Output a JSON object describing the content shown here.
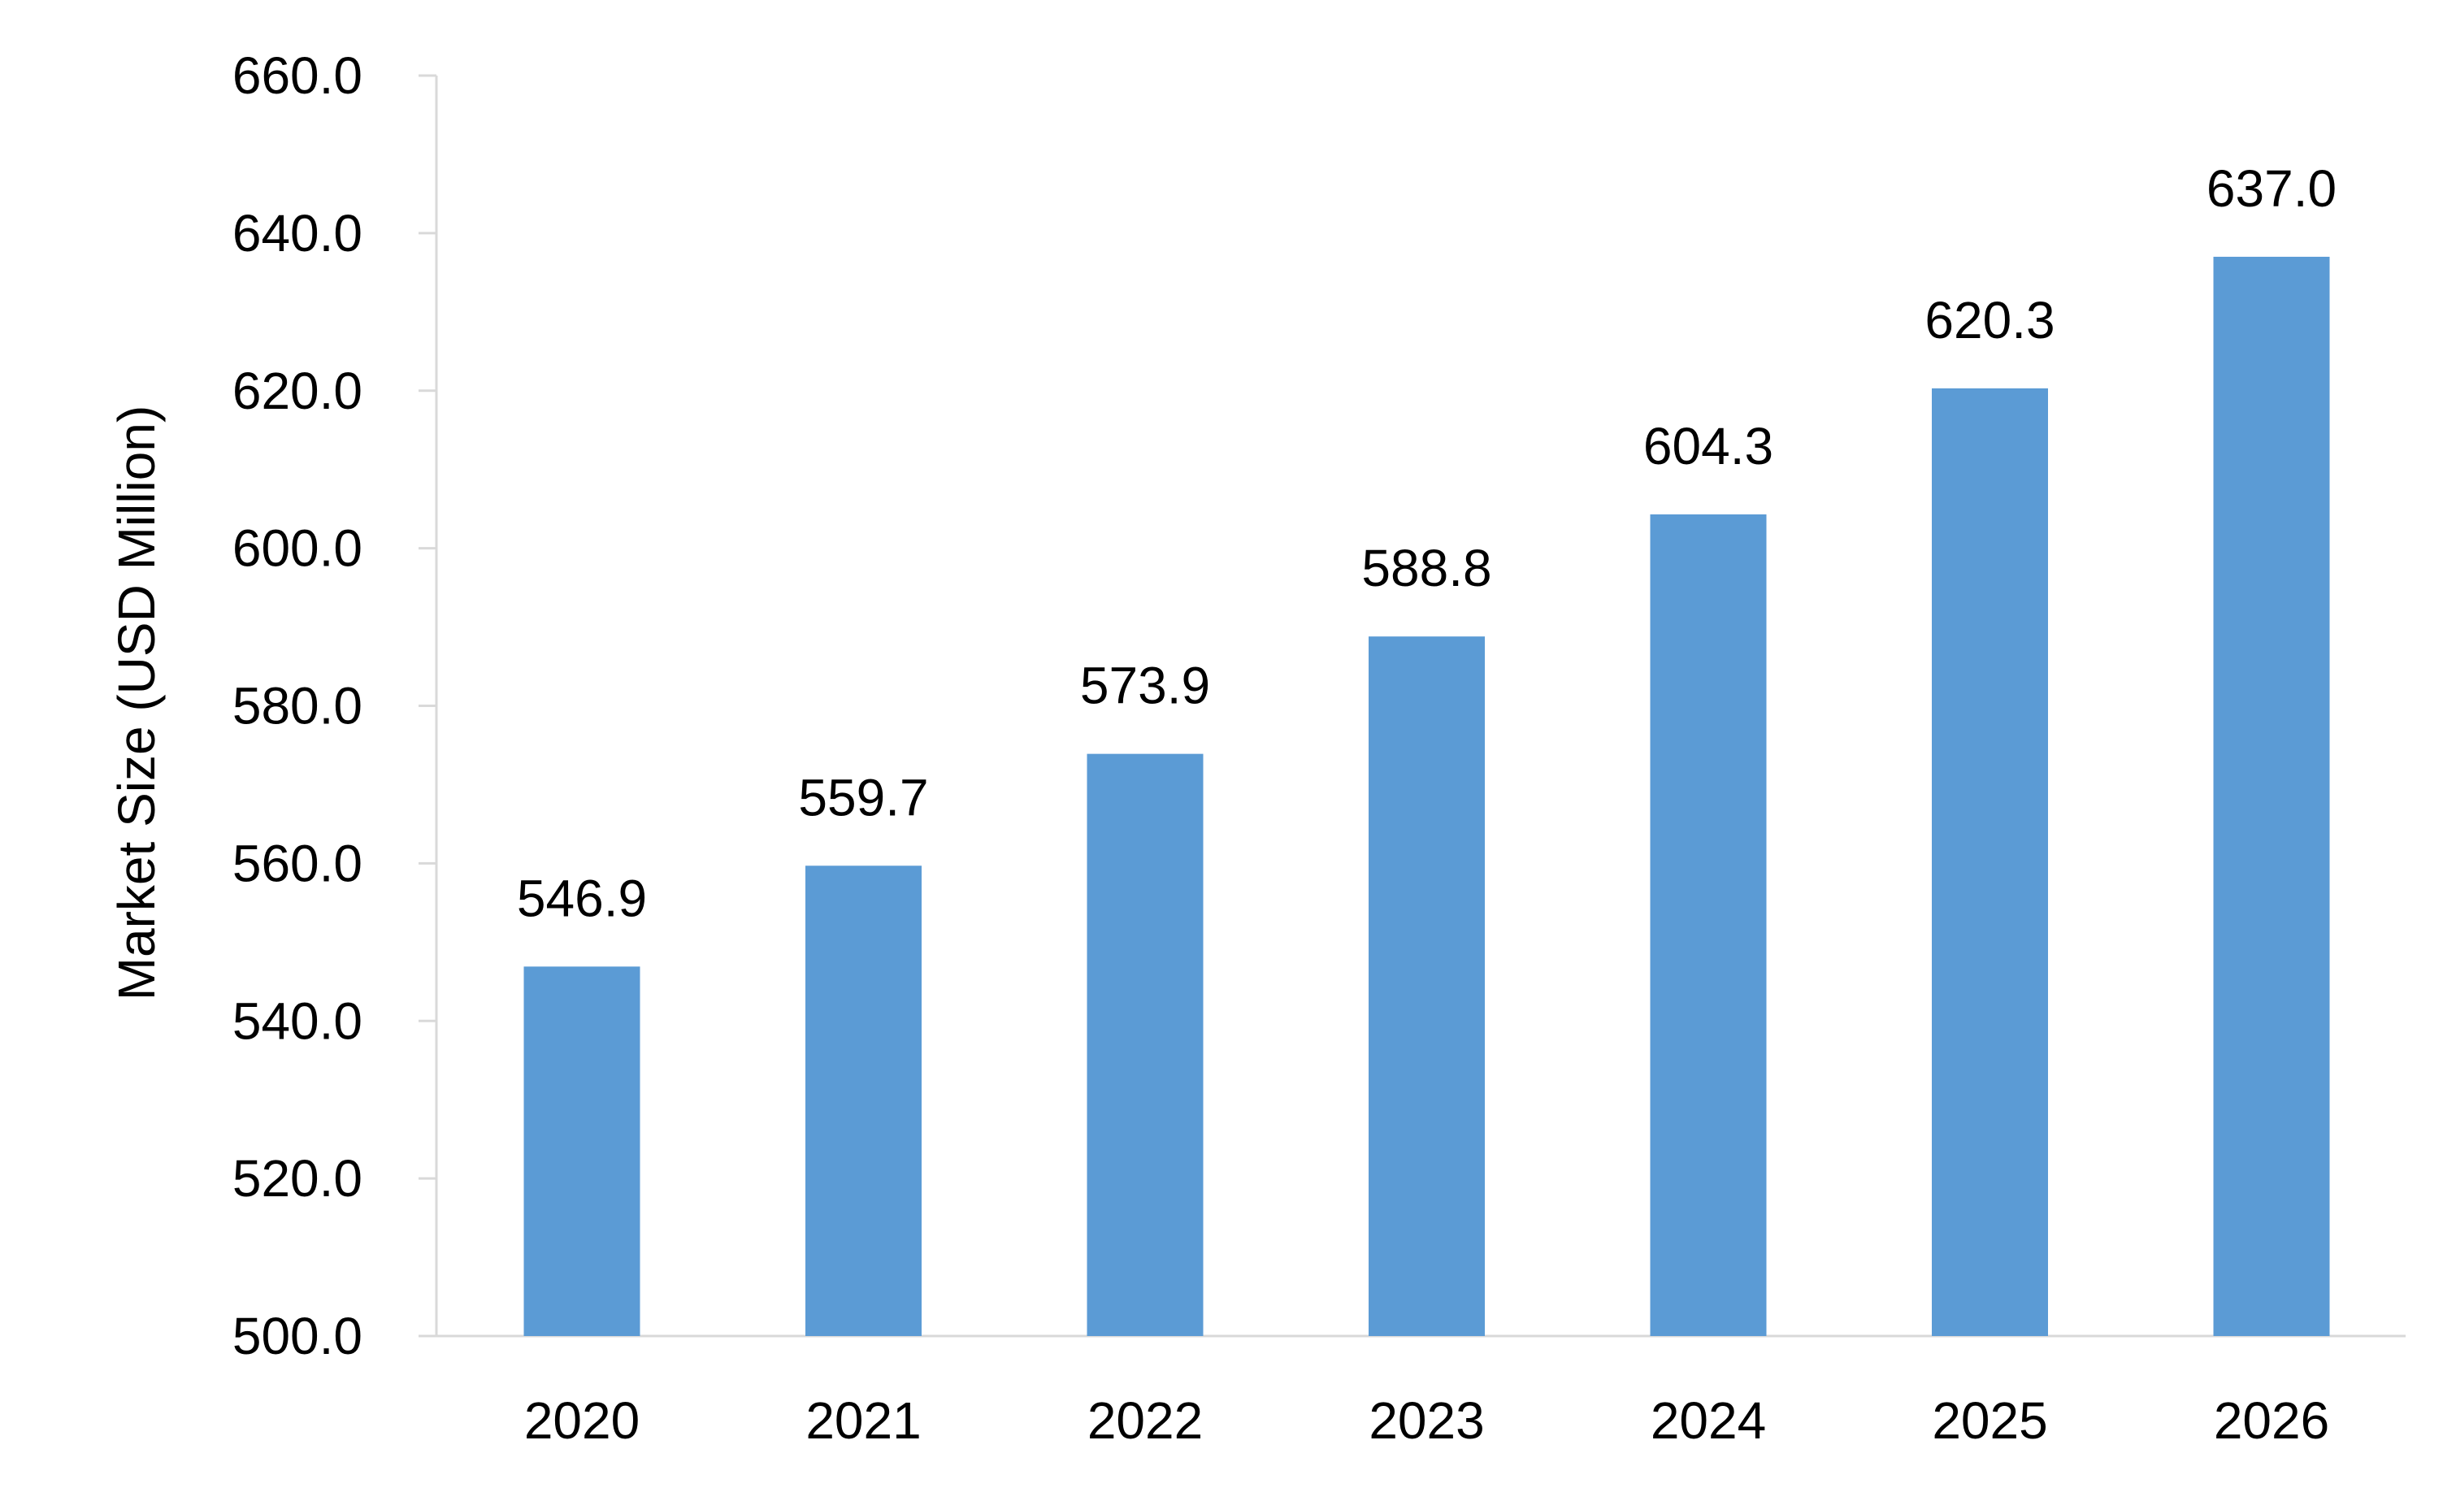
{
  "chart_data": {
    "type": "bar",
    "title": "",
    "xlabel": "",
    "ylabel": "Market Size (USD Million)",
    "categories": [
      "2020",
      "2021",
      "2022",
      "2023",
      "2024",
      "2025",
      "2026"
    ],
    "values": [
      546.9,
      559.7,
      573.9,
      588.8,
      604.3,
      620.3,
      637.0
    ],
    "value_labels": [
      "546.9",
      "559.7",
      "573.9",
      "588.8",
      "604.3",
      "620.3",
      "637.0"
    ],
    "ylim": [
      500,
      660
    ],
    "yticks": [
      500,
      520,
      540,
      560,
      580,
      600,
      620,
      640,
      660
    ],
    "ytick_labels": [
      "500.0",
      "520.0",
      "540.0",
      "560.0",
      "580.0",
      "600.0",
      "620.0",
      "640.0",
      "660.0"
    ],
    "grid": false,
    "legend": "none"
  },
  "colors": {
    "bar": "#5B9BD5",
    "axis": "#D9D9D9",
    "text": "#000000"
  }
}
